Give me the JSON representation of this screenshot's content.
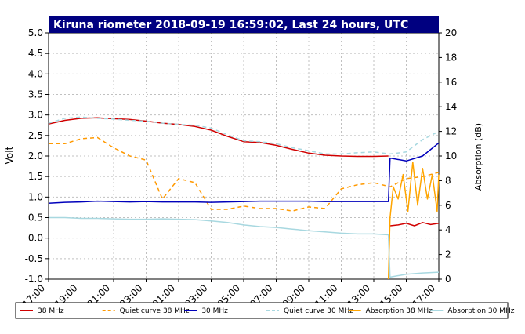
{
  "chart_data": {
    "type": "line",
    "title": "Kiruna riometer 2018-09-19 16:59:02, Last 24 hours, UTC",
    "ylabel": "Volt",
    "y2label": "Absorption (dB)",
    "xlabel": "",
    "ylim": [
      -1.0,
      5.0
    ],
    "y2lim": [
      0,
      20
    ],
    "yticks": [
      "-1.0",
      "-0.5",
      "0.0",
      "0.5",
      "1.0",
      "1.5",
      "2.0",
      "2.5",
      "3.0",
      "3.5",
      "4.0",
      "4.5",
      "5.0"
    ],
    "y2ticks": [
      "0",
      "2",
      "4",
      "6",
      "8",
      "10",
      "12",
      "14",
      "16",
      "18",
      "20"
    ],
    "xticks": [
      "17:00",
      "19:00",
      "21:00",
      "23:00",
      "01:00",
      "03:00",
      "05:00",
      "07:00",
      "09:00",
      "11:00",
      "13:00",
      "15:00",
      "17:00"
    ],
    "x_unit": "hours since 2018-09-18 17:00 UTC",
    "xlim": [
      0,
      24
    ],
    "grid": true,
    "legend_position": "bottom",
    "colors": {
      "frame_title_bg": "#000080",
      "grid": "#c0c0c0"
    },
    "series": [
      {
        "name": "38 MHz",
        "style": "solid",
        "color": "#d00000",
        "axis": "left",
        "x": [
          0,
          1,
          2,
          3,
          4,
          5,
          6,
          7,
          8,
          9,
          10,
          11,
          12,
          13,
          14,
          15,
          16,
          17,
          18,
          19,
          20,
          20.9
        ],
        "y": [
          2.78,
          2.87,
          2.92,
          2.93,
          2.91,
          2.89,
          2.85,
          2.8,
          2.77,
          2.72,
          2.63,
          2.48,
          2.35,
          2.33,
          2.26,
          2.16,
          2.07,
          2.02,
          2.0,
          1.99,
          1.99,
          2.0
        ]
      },
      {
        "name": "38 MHz",
        "style": "solid",
        "color": "#d00000",
        "axis": "left",
        "x": [
          21.0,
          21.5,
          22,
          22.5,
          23,
          23.5,
          24
        ],
        "y": [
          0.3,
          0.32,
          0.36,
          0.3,
          0.38,
          0.33,
          0.36
        ]
      },
      {
        "name": "Quiet curve 38 MHz",
        "style": "dashed",
        "color": "#ff9900",
        "axis": "left",
        "x": [
          0,
          1,
          2,
          3,
          4,
          5,
          6,
          7,
          8,
          9,
          10,
          11,
          12,
          13,
          14,
          15,
          16,
          17,
          18,
          19,
          20,
          21,
          22,
          23,
          24
        ],
        "y": [
          2.3,
          2.3,
          2.42,
          2.45,
          2.2,
          2.0,
          1.9,
          0.95,
          1.45,
          1.35,
          0.7,
          0.7,
          0.78,
          0.72,
          0.72,
          0.66,
          0.76,
          0.72,
          1.2,
          1.3,
          1.35,
          1.25,
          1.45,
          1.5,
          1.6
        ]
      },
      {
        "name": "30 MHz",
        "style": "solid",
        "color": "#0000bb",
        "axis": "left",
        "x": [
          0,
          1,
          2,
          3,
          4,
          5,
          6,
          7,
          8,
          9,
          10,
          11,
          12,
          13,
          14,
          15,
          16,
          17,
          18,
          19,
          20,
          20.9,
          21.0,
          22,
          23,
          24
        ],
        "y": [
          0.85,
          0.87,
          0.88,
          0.9,
          0.89,
          0.88,
          0.89,
          0.88,
          0.88,
          0.88,
          0.87,
          0.88,
          0.89,
          0.9,
          0.9,
          0.9,
          0.9,
          0.89,
          0.89,
          0.89,
          0.89,
          0.89,
          1.95,
          1.88,
          2.0,
          2.32
        ]
      },
      {
        "name": "Quiet curve 30 MHz",
        "style": "dashed",
        "color": "#a8d8e0",
        "axis": "left",
        "x": [
          0,
          1,
          2,
          3,
          4,
          5,
          6,
          7,
          8,
          9,
          10,
          11,
          12,
          13,
          14,
          15,
          16,
          17,
          18,
          19,
          20,
          21,
          22,
          23,
          24
        ],
        "y": [
          2.8,
          2.92,
          2.95,
          2.92,
          2.9,
          2.87,
          2.85,
          2.8,
          2.77,
          2.75,
          2.68,
          2.52,
          2.37,
          2.35,
          2.3,
          2.2,
          2.13,
          2.05,
          2.05,
          2.08,
          2.1,
          2.05,
          2.1,
          2.4,
          2.6
        ]
      },
      {
        "name": "Absorption 38 MHz",
        "style": "solid",
        "color": "#ffa500",
        "axis": "right",
        "x": [
          20.9,
          21.0,
          21.2,
          21.5,
          21.8,
          22.1,
          22.4,
          22.7,
          23.0,
          23.3,
          23.6,
          23.9,
          24
        ],
        "y": [
          0,
          5,
          7.5,
          6.5,
          8.5,
          5.5,
          9.5,
          6.0,
          9.0,
          6.5,
          8.5,
          5.5,
          8.5
        ]
      },
      {
        "name": "Absorption 30 MHz",
        "style": "solid",
        "color": "#a8d8e0",
        "axis": "left",
        "x": [
          0,
          1,
          2,
          3,
          4,
          5,
          6,
          7,
          8,
          9,
          10,
          11,
          12,
          13,
          14,
          15,
          16,
          17,
          18,
          19,
          20,
          20.9,
          21.0,
          22,
          23,
          24
        ],
        "y": [
          0.5,
          0.5,
          0.48,
          0.48,
          0.47,
          0.46,
          0.46,
          0.47,
          0.46,
          0.45,
          0.42,
          0.38,
          0.32,
          0.28,
          0.26,
          0.22,
          0.18,
          0.15,
          0.12,
          0.1,
          0.1,
          0.08,
          -0.95,
          -0.88,
          -0.85,
          -0.83
        ]
      }
    ]
  }
}
